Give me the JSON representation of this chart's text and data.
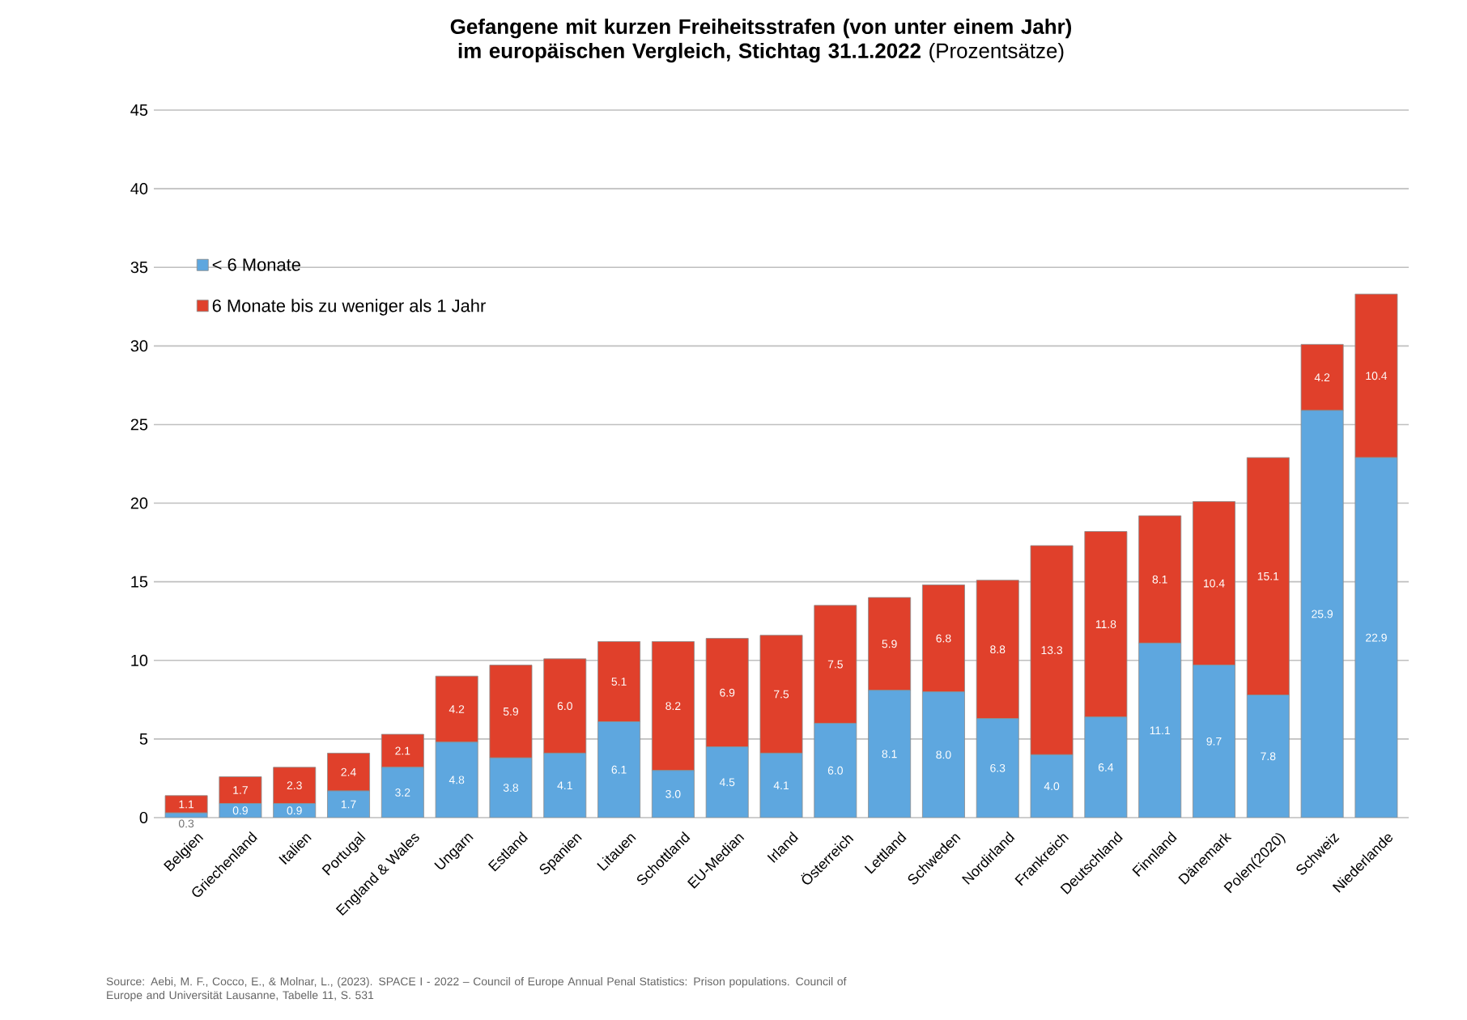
{
  "chart_data": {
    "type": "bar",
    "title": "**Gefangene mit kurzen Freiheitsstrafen (von unter einem Jahr) im europäischen Vergleich, Stichtag 31.1.2022** (Prozentsätze)",
    "categories": [
      "Belgien",
      "Griechenland",
      "Italien",
      "Portugal",
      "England & Wales",
      "Ungarn",
      "Estland",
      "Spanien",
      "Litauen",
      "Schottland",
      "EU-Median",
      "Irland",
      "Österreich",
      "Lettland",
      "Schweden",
      "Nordirland",
      "Frankreich",
      "Deutschland",
      "Finnland",
      "Dänemark",
      "Polen(2020)",
      "Schweiz",
      "Niederlande"
    ],
    "series": [
      {
        "name": "< 6 Monate",
        "color": "#5ea7df",
        "values": [
          0.3,
          0.9,
          0.9,
          1.7,
          3.2,
          4.8,
          3.8,
          4.1,
          6.1,
          3.0,
          4.5,
          4.1,
          6.0,
          8.1,
          8.0,
          6.3,
          4.0,
          6.4,
          11.1,
          9.7,
          7.8,
          25.9,
          22.9
        ],
        "value_labels": [
          "0.3",
          "0.9",
          "0.9",
          "1.7",
          "3.2",
          "4.8",
          "3.8",
          "4.1",
          "6.1",
          "3.0",
          "4.5",
          "4.1",
          "6.0",
          "8.1",
          "8.0",
          "6.3",
          "4.0",
          "6.4",
          "11.1",
          "9.7",
          "7.8",
          "25.9",
          "22.9"
        ]
      },
      {
        "name": "6 Monate bis zu weniger als 1 Jahr",
        "color": "#e0402b",
        "values": [
          1.1,
          1.7,
          2.3,
          2.4,
          2.1,
          4.2,
          5.9,
          6.0,
          5.1,
          8.2,
          6.9,
          7.5,
          7.5,
          5.9,
          6.8,
          8.8,
          13.3,
          11.8,
          8.1,
          10.4,
          15.1,
          4.2,
          10.4
        ],
        "value_labels": [
          "1.1",
          "1.7",
          "2.3",
          "2.4",
          "2.1",
          "4.2",
          "5.9",
          "6.0",
          "5.1",
          "8.2",
          "6.9",
          "7.5",
          "7.5",
          "5.9",
          "6.8",
          "8.8",
          "13.3",
          "11.8",
          "8.1",
          "10.4",
          "15.1",
          "4.2",
          "10.4"
        ]
      }
    ],
    "stacked": true,
    "grid": "y",
    "legend": "top left",
    "ylim": [
      0,
      45
    ],
    "yticks": [
      0,
      5,
      10,
      15,
      20,
      25,
      30,
      35,
      40,
      45
    ],
    "annotations": [
      "Source: Aebi, M. F., Cocco, E., & Molnar, L., (2023). SPACE I - 2022 – Council of Europe Annual Penal Statistics: Prison populations. Council of Europe and Universität Lausanne, Tabelle 11, S. 531"
    ]
  }
}
